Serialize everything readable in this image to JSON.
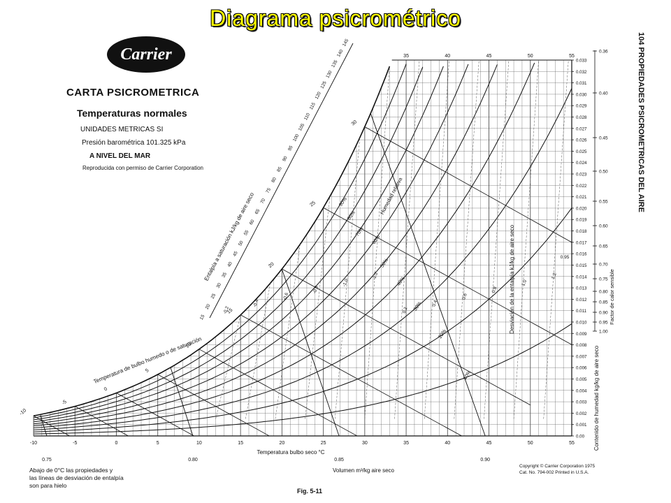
{
  "title": "Diagrama psicrométrico",
  "logo": "Carrier",
  "header": {
    "line1": "CARTA PSICROMETRICA",
    "line2": "Temperaturas normales",
    "line3": "UNIDADES METRICAS SI",
    "line4": "Presión barométrica 101.325 kPa",
    "line5": "A NIVEL DEL MAR",
    "line6": "Reproducida con permiso de  Carrier Corporation"
  },
  "side_title": "104   PROPIEDADES PSICROMETRICAS DEL AIRE",
  "footnote": [
    "Abajo de 0°C las propiedades y",
    "las líneas de desviación de entalpía",
    "son para hielo"
  ],
  "figure_label": "Fig. 5-11",
  "copyright": [
    "Copyright © Carrier Corporation 1975",
    "Cat. No. 794-002    Printed in U.S.A."
  ],
  "chart_data": {
    "type": "line",
    "title": "CARTA PSICROMETRICA",
    "xlabel": "Temperatura bulbo seco °C",
    "ylabel": "Contenido de humedad kg/kg de aire seco",
    "xlim": [
      -10,
      55
    ],
    "ylim": [
      0,
      0.033
    ],
    "x_ticks": [
      -10,
      -5,
      0,
      5,
      10,
      15,
      20,
      25,
      30,
      35,
      40,
      45,
      50,
      55
    ],
    "x_ticks_top": [
      35,
      40,
      45,
      50,
      55
    ],
    "y_ticks": [
      "0.00",
      "0.001",
      "0.002",
      "0.003",
      "0.004",
      "0.005",
      "0.006",
      "0.007",
      "0.008",
      "0.009",
      "0.010",
      "0.011",
      "0.012",
      "0.013",
      "0.014",
      "0.015",
      "0.016",
      "0.017",
      "0.018",
      "0.019",
      "0.020",
      "0.021",
      "0.022",
      "0.023",
      "0.024",
      "0.025",
      "0.026",
      "0.027",
      "0.028",
      "0.029",
      "0.030",
      "0.031",
      "0.032",
      "0.033"
    ],
    "grid": true,
    "relative_humidity": {
      "label": "Humedad relativa",
      "curves": [
        {
          "name": "10%",
          "label": "10%",
          "rh": 0.1
        },
        {
          "name": "20%",
          "label": "20%",
          "rh": 0.2
        },
        {
          "name": "30%",
          "label": "30%",
          "rh": 0.3
        },
        {
          "name": "40%",
          "label": "40%",
          "rh": 0.4
        },
        {
          "name": "50%",
          "label": "50%",
          "rh": 0.5
        },
        {
          "name": "60%",
          "label": "60%",
          "rh": 0.6
        },
        {
          "name": "70%",
          "label": "70%",
          "rh": 0.7
        },
        {
          "name": "80%",
          "label": "80%",
          "rh": 0.8
        },
        {
          "name": "90%",
          "label": "90%",
          "rh": 0.9
        },
        {
          "name": "saturación",
          "label": "",
          "rh": 1.0
        }
      ]
    },
    "wet_bulb_label": "Temperatura de bulbo humedo o de saturación",
    "wet_bulb_ticks": [
      -10,
      -5,
      0,
      5,
      10,
      15,
      20,
      25,
      30
    ],
    "enthalpy_label": "Entalpía a saturación kJ/kg de aire seco",
    "enthalpy_ticks": [
      15,
      20,
      25,
      30,
      35,
      40,
      45,
      50,
      55,
      60,
      65,
      70,
      75,
      80,
      85,
      90,
      95,
      100,
      105,
      110,
      115,
      120,
      125,
      130,
      135,
      140,
      145
    ],
    "enthalpy_deviation_label": "Desviación de la entalpía kJ/kg de aire seco",
    "enthalpy_deviation_ticks": [
      "-0.2",
      "-0.4",
      "-0.6",
      "-0.8",
      "-1.0",
      "-1.2",
      "0.2",
      "0.4",
      "0.6",
      "0.8",
      "1.0",
      "1.2"
    ],
    "volume_label": "Volumen m³/kg aire seco",
    "volume_ticks": [
      0.75,
      0.8,
      0.85,
      0.9
    ],
    "sensible_heat_label": "Factor de calor sensible",
    "sensible_heat_ticks": [
      "0.36",
      "0.40",
      "0.45",
      "0.50",
      "0.55",
      "0.60",
      "0.65",
      "0.70",
      "0.75",
      "0.80",
      "0.85",
      "0.90",
      "0.95",
      "1.00"
    ],
    "shf_marker": "0.95",
    "colors": {
      "line": "#111111",
      "grid": "#555555",
      "background": "#ffffff"
    }
  }
}
